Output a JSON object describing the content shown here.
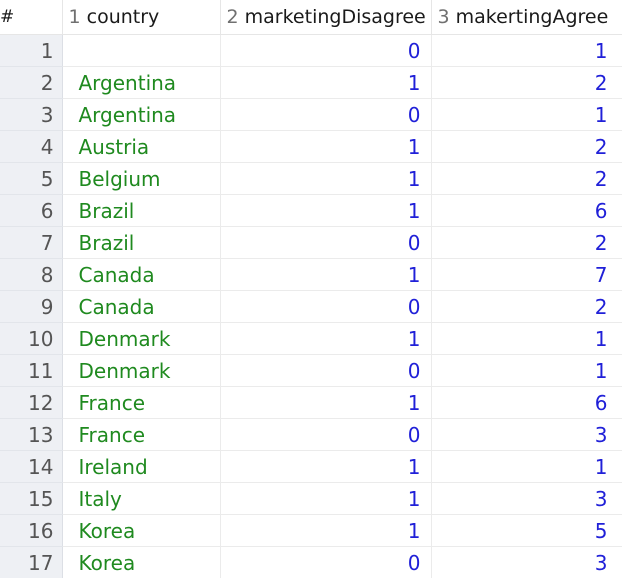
{
  "table": {
    "headers": {
      "rownum": "#",
      "country": {
        "index": "1",
        "label": "country"
      },
      "marketingDisagree": {
        "index": "2",
        "label": "marketingDisagree"
      },
      "makertingAgree": {
        "index": "3",
        "label": "makertingAgree"
      }
    },
    "rows": [
      {
        "num": "1",
        "country": "",
        "marketingDisagree": "0",
        "makertingAgree": "1"
      },
      {
        "num": "2",
        "country": "Argentina",
        "marketingDisagree": "1",
        "makertingAgree": "2"
      },
      {
        "num": "3",
        "country": "Argentina",
        "marketingDisagree": "0",
        "makertingAgree": "1"
      },
      {
        "num": "4",
        "country": "Austria",
        "marketingDisagree": "1",
        "makertingAgree": "2"
      },
      {
        "num": "5",
        "country": "Belgium",
        "marketingDisagree": "1",
        "makertingAgree": "2"
      },
      {
        "num": "6",
        "country": "Brazil",
        "marketingDisagree": "1",
        "makertingAgree": "6"
      },
      {
        "num": "7",
        "country": "Brazil",
        "marketingDisagree": "0",
        "makertingAgree": "2"
      },
      {
        "num": "8",
        "country": "Canada",
        "marketingDisagree": "1",
        "makertingAgree": "7"
      },
      {
        "num": "9",
        "country": "Canada",
        "marketingDisagree": "0",
        "makertingAgree": "2"
      },
      {
        "num": "10",
        "country": "Denmark",
        "marketingDisagree": "1",
        "makertingAgree": "1"
      },
      {
        "num": "11",
        "country": "Denmark",
        "marketingDisagree": "0",
        "makertingAgree": "1"
      },
      {
        "num": "12",
        "country": "France",
        "marketingDisagree": "1",
        "makertingAgree": "6"
      },
      {
        "num": "13",
        "country": "France",
        "marketingDisagree": "0",
        "makertingAgree": "3"
      },
      {
        "num": "14",
        "country": "Ireland",
        "marketingDisagree": "1",
        "makertingAgree": "1"
      },
      {
        "num": "15",
        "country": "Italy",
        "marketingDisagree": "1",
        "makertingAgree": "3"
      },
      {
        "num": "16",
        "country": "Korea",
        "marketingDisagree": "1",
        "makertingAgree": "5"
      },
      {
        "num": "17",
        "country": "Korea",
        "marketingDisagree": "0",
        "makertingAgree": "3"
      }
    ]
  },
  "colors": {
    "country_text": "#1f8a1f",
    "number_text": "#2020d8",
    "rownum_background": "#eef0f4"
  }
}
